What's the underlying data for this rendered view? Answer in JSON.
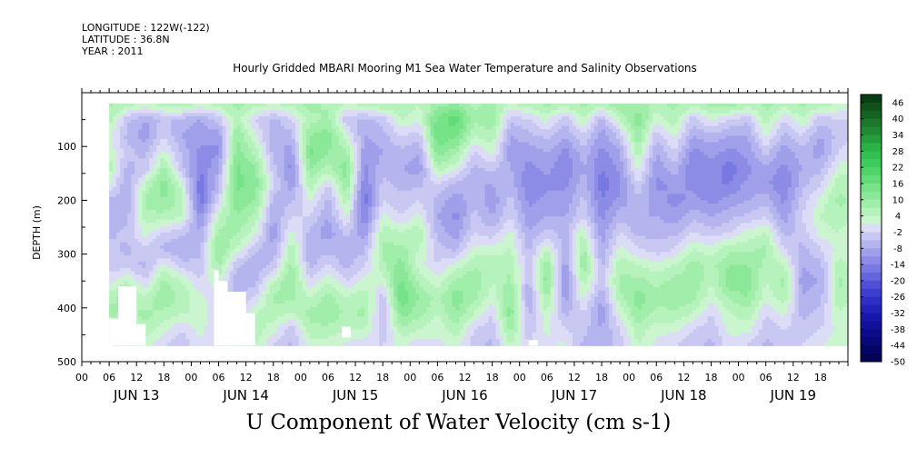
{
  "header": {
    "longitude": "LONGITUDE : 122W(-122)",
    "latitude": "LATITUDE : 36.8N",
    "year": "YEAR : 2011"
  },
  "chart_data": {
    "type": "heatmap",
    "title": "Hourly Gridded MBARI Mooring M1 Sea Water Temperature and Salinity Observations",
    "subtitle": "U Component of Water Velocity (cm s-1)",
    "ylabel": "DEPTH (m)",
    "xlabel": "",
    "ylim": [
      500,
      0
    ],
    "y_ticks": [
      100,
      200,
      300,
      400,
      500
    ],
    "x_hour_labels": [
      "00",
      "06",
      "12",
      "18",
      "00",
      "06",
      "12",
      "18",
      "00",
      "06",
      "12",
      "18",
      "00",
      "06",
      "12",
      "18",
      "00",
      "06",
      "12",
      "18",
      "00",
      "06",
      "12",
      "18",
      "00",
      "06",
      "12",
      "18"
    ],
    "x_day_labels": [
      "JUN 13",
      "JUN 14",
      "JUN 15",
      "JUN 16",
      "JUN 17",
      "JUN 18",
      "JUN 19"
    ],
    "x_range_hours": [
      0,
      168
    ],
    "colorbar": {
      "labels": [
        "46",
        "40",
        "34",
        "28",
        "22",
        "16",
        "10",
        "4",
        "-2",
        "-8",
        "-14",
        "-20",
        "-26",
        "-32",
        "-38",
        "-44",
        "-50"
      ],
      "bins": [
        {
          "from": 46,
          "to": 52,
          "color": "#0b3d14"
        },
        {
          "from": 43,
          "to": 46,
          "color": "#10501b"
        },
        {
          "from": 40,
          "to": 43,
          "color": "#156322"
        },
        {
          "from": 37,
          "to": 40,
          "color": "#1a772b"
        },
        {
          "from": 34,
          "to": 37,
          "color": "#1f8a33"
        },
        {
          "from": 31,
          "to": 34,
          "color": "#249e3c"
        },
        {
          "from": 28,
          "to": 31,
          "color": "#2ab246"
        },
        {
          "from": 25,
          "to": 28,
          "color": "#32c050"
        },
        {
          "from": 22,
          "to": 25,
          "color": "#3ecb5b"
        },
        {
          "from": 19,
          "to": 22,
          "color": "#50d469"
        },
        {
          "from": 16,
          "to": 19,
          "color": "#63dc78"
        },
        {
          "from": 13,
          "to": 16,
          "color": "#77e388"
        },
        {
          "from": 10,
          "to": 13,
          "color": "#8ce899"
        },
        {
          "from": 7,
          "to": 10,
          "color": "#a1edaa"
        },
        {
          "from": 4,
          "to": 7,
          "color": "#b6f2bc"
        },
        {
          "from": 1,
          "to": 4,
          "color": "#cbf5cf"
        },
        {
          "from": -2,
          "to": 1,
          "color": "#dcdcf7"
        },
        {
          "from": -5,
          "to": -2,
          "color": "#c8c8f2"
        },
        {
          "from": -8,
          "to": -5,
          "color": "#b4b4ee"
        },
        {
          "from": -11,
          "to": -8,
          "color": "#a0a0ea"
        },
        {
          "from": -14,
          "to": -11,
          "color": "#8c8ce6"
        },
        {
          "from": -17,
          "to": -14,
          "color": "#7878e2"
        },
        {
          "from": -20,
          "to": -17,
          "color": "#6464dc"
        },
        {
          "from": -23,
          "to": -20,
          "color": "#5050d6"
        },
        {
          "from": -26,
          "to": -23,
          "color": "#3e3ecf"
        },
        {
          "from": -29,
          "to": -26,
          "color": "#2e2ec6"
        },
        {
          "from": -32,
          "to": -29,
          "color": "#2222ba"
        },
        {
          "from": -35,
          "to": -32,
          "color": "#1818ac"
        },
        {
          "from": -38,
          "to": -35,
          "color": "#11119c"
        },
        {
          "from": -41,
          "to": -38,
          "color": "#0c0c8a"
        },
        {
          "from": -44,
          "to": -41,
          "color": "#080878"
        },
        {
          "from": -47,
          "to": -44,
          "color": "#050566"
        },
        {
          "from": -50,
          "to": -47,
          "color": "#030355"
        }
      ]
    },
    "field": {
      "hour_step": 4,
      "depth_step": 30,
      "depths": [
        20,
        50,
        80,
        110,
        140,
        170,
        200,
        230,
        260,
        290,
        320,
        350,
        380,
        410,
        440,
        470
      ],
      "hours_start": 6,
      "hours_end": 170,
      "columns": [
        {
          "h": 6,
          "u": [
            8,
            6,
            2,
            4,
            6,
            2,
            -6,
            -8,
            -6,
            -4,
            -4,
            0,
            6,
            8,
            4,
            -2
          ]
        },
        {
          "h": 10,
          "u": [
            6,
            -4,
            -6,
            -4,
            -6,
            -8,
            -8,
            -6,
            -4,
            -6,
            -4,
            4,
            8,
            6,
            4,
            2
          ]
        },
        {
          "h": 14,
          "u": [
            4,
            -8,
            -10,
            -6,
            -4,
            4,
            8,
            6,
            2,
            -2,
            -6,
            -2,
            4,
            8,
            6,
            2
          ]
        },
        {
          "h": 18,
          "u": [
            6,
            -4,
            -2,
            2,
            8,
            12,
            10,
            6,
            -2,
            -6,
            2,
            8,
            10,
            6,
            2,
            -2
          ]
        },
        {
          "h": 22,
          "u": [
            8,
            -6,
            -8,
            -6,
            -4,
            2,
            6,
            4,
            -4,
            -8,
            -4,
            4,
            6,
            4,
            -2,
            -4
          ]
        },
        {
          "h": 26,
          "u": [
            4,
            -8,
            -10,
            -12,
            -14,
            -16,
            -16,
            -12,
            -8,
            -6,
            -4,
            -2,
            2,
            4,
            2,
            0
          ]
        },
        {
          "h": 30,
          "u": [
            6,
            -4,
            -10,
            -12,
            -8,
            -6,
            -2,
            4,
            8,
            10,
            8,
            4,
            -2,
            -4,
            -2,
            0
          ]
        },
        {
          "h": 34,
          "u": [
            8,
            6,
            10,
            12,
            14,
            14,
            12,
            10,
            8,
            4,
            -4,
            -8,
            -6,
            -4,
            2,
            4
          ]
        },
        {
          "h": 38,
          "u": [
            6,
            -2,
            2,
            6,
            10,
            12,
            10,
            6,
            2,
            -4,
            -8,
            -6,
            -2,
            4,
            6,
            4
          ]
        },
        {
          "h": 42,
          "u": [
            4,
            -6,
            -8,
            -6,
            -4,
            -2,
            -6,
            -8,
            -10,
            -8,
            -4,
            4,
            8,
            6,
            2,
            -2
          ]
        },
        {
          "h": 46,
          "u": [
            6,
            -2,
            -6,
            -10,
            -12,
            -10,
            -6,
            -2,
            2,
            6,
            8,
            10,
            8,
            4,
            -4,
            -6
          ]
        },
        {
          "h": 50,
          "u": [
            8,
            6,
            10,
            14,
            10,
            6,
            2,
            -2,
            -6,
            -8,
            -6,
            -2,
            4,
            8,
            6,
            2
          ]
        },
        {
          "h": 54,
          "u": [
            6,
            8,
            12,
            10,
            6,
            -2,
            -6,
            -8,
            -10,
            -6,
            -2,
            4,
            8,
            10,
            6,
            2
          ]
        },
        {
          "h": 58,
          "u": [
            4,
            -4,
            2,
            8,
            12,
            10,
            6,
            2,
            -4,
            -8,
            -6,
            -2,
            4,
            6,
            4,
            0
          ]
        },
        {
          "h": 62,
          "u": [
            6,
            -6,
            -8,
            -10,
            -12,
            -14,
            -16,
            -14,
            -10,
            -6,
            -2,
            2,
            6,
            8,
            4,
            -2
          ]
        },
        {
          "h": 66,
          "u": [
            8,
            -4,
            -6,
            -8,
            -6,
            -4,
            -2,
            2,
            6,
            8,
            6,
            2,
            -4,
            -6,
            -4,
            -2
          ]
        },
        {
          "h": 70,
          "u": [
            6,
            4,
            -2,
            -6,
            -8,
            -6,
            -4,
            -2,
            4,
            8,
            12,
            14,
            16,
            12,
            6,
            2
          ]
        },
        {
          "h": 74,
          "u": [
            4,
            2,
            -4,
            -8,
            -10,
            -6,
            -2,
            2,
            6,
            4,
            2,
            6,
            10,
            8,
            4,
            -2
          ]
        },
        {
          "h": 78,
          "u": [
            8,
            14,
            16,
            12,
            6,
            -2,
            -6,
            -8,
            -6,
            -4,
            -2,
            2,
            6,
            4,
            2,
            0
          ]
        },
        {
          "h": 82,
          "u": [
            10,
            18,
            14,
            8,
            2,
            -6,
            -10,
            -12,
            -10,
            -6,
            2,
            8,
            12,
            10,
            6,
            2
          ]
        },
        {
          "h": 86,
          "u": [
            6,
            8,
            4,
            -2,
            -6,
            -8,
            -6,
            -4,
            -2,
            2,
            6,
            10,
            8,
            4,
            -2,
            -4
          ]
        },
        {
          "h": 90,
          "u": [
            8,
            10,
            6,
            2,
            -4,
            -8,
            -10,
            -8,
            -4,
            2,
            6,
            4,
            2,
            -2,
            -4,
            -6
          ]
        },
        {
          "h": 94,
          "u": [
            4,
            -4,
            -8,
            -10,
            -8,
            -6,
            -4,
            -2,
            2,
            4,
            6,
            8,
            10,
            12,
            8,
            4
          ]
        },
        {
          "h": 98,
          "u": [
            6,
            -2,
            -6,
            -10,
            -12,
            -14,
            -12,
            -10,
            -8,
            -6,
            -4,
            -6,
            -8,
            -6,
            -4,
            -2
          ]
        },
        {
          "h": 102,
          "u": [
            8,
            2,
            -4,
            -8,
            -10,
            -12,
            -10,
            -8,
            -4,
            4,
            10,
            12,
            8,
            4,
            2,
            0
          ]
        },
        {
          "h": 106,
          "u": [
            6,
            -4,
            -8,
            -12,
            -14,
            -12,
            -10,
            -8,
            -6,
            -8,
            -10,
            -12,
            -10,
            -6,
            -2,
            2
          ]
        },
        {
          "h": 110,
          "u": [
            8,
            4,
            -2,
            -6,
            -8,
            -6,
            -4,
            -2,
            4,
            8,
            10,
            6,
            2,
            -2,
            -4,
            -6
          ]
        },
        {
          "h": 114,
          "u": [
            6,
            -6,
            -10,
            -12,
            -14,
            -16,
            -14,
            -12,
            -10,
            -8,
            -6,
            -4,
            -8,
            -10,
            -8,
            -6
          ]
        },
        {
          "h": 118,
          "u": [
            10,
            4,
            -4,
            -8,
            -10,
            -12,
            -10,
            -6,
            -2,
            2,
            6,
            8,
            6,
            2,
            -2,
            -4
          ]
        },
        {
          "h": 122,
          "u": [
            8,
            12,
            10,
            6,
            2,
            -2,
            -6,
            -8,
            -6,
            -2,
            4,
            8,
            12,
            10,
            6,
            4
          ]
        },
        {
          "h": 126,
          "u": [
            6,
            2,
            -4,
            -8,
            -10,
            -12,
            -10,
            -8,
            -6,
            -4,
            2,
            6,
            8,
            6,
            2,
            0
          ]
        },
        {
          "h": 130,
          "u": [
            8,
            6,
            2,
            -2,
            -6,
            -10,
            -12,
            -10,
            -6,
            -2,
            4,
            8,
            10,
            6,
            2,
            -2
          ]
        },
        {
          "h": 134,
          "u": [
            6,
            -4,
            -8,
            -12,
            -14,
            -12,
            -10,
            -6,
            -2,
            4,
            8,
            10,
            8,
            4,
            -2,
            -4
          ]
        },
        {
          "h": 138,
          "u": [
            8,
            2,
            -6,
            -10,
            -12,
            -14,
            -12,
            -8,
            -4,
            2,
            6,
            4,
            2,
            -2,
            -4,
            -6
          ]
        },
        {
          "h": 142,
          "u": [
            10,
            -2,
            -8,
            -12,
            -16,
            -14,
            -10,
            -6,
            -2,
            6,
            10,
            12,
            8,
            4,
            2,
            0
          ]
        },
        {
          "h": 146,
          "u": [
            6,
            -4,
            -8,
            -10,
            -12,
            -10,
            -8,
            -4,
            2,
            6,
            10,
            12,
            10,
            6,
            2,
            -2
          ]
        },
        {
          "h": 150,
          "u": [
            8,
            6,
            2,
            -4,
            -8,
            -10,
            -6,
            -2,
            4,
            8,
            6,
            4,
            2,
            -2,
            -4,
            -6
          ]
        },
        {
          "h": 154,
          "u": [
            6,
            -2,
            -6,
            -10,
            -12,
            -14,
            -12,
            -10,
            -6,
            -2,
            4,
            8,
            6,
            2,
            -2,
            -4
          ]
        },
        {
          "h": 158,
          "u": [
            8,
            4,
            -2,
            -6,
            -8,
            -6,
            -4,
            -2,
            -4,
            -6,
            -8,
            -10,
            -8,
            -6,
            -4,
            -2
          ]
        },
        {
          "h": 162,
          "u": [
            6,
            -4,
            -8,
            -10,
            -6,
            -2,
            2,
            4,
            2,
            -2,
            -6,
            -8,
            -6,
            -4,
            -2,
            0
          ]
        },
        {
          "h": 166,
          "u": [
            4,
            -2,
            -4,
            -2,
            2,
            6,
            8,
            6,
            4,
            2,
            6,
            8,
            6,
            4,
            2,
            4
          ]
        },
        {
          "h": 170,
          "u": [
            2,
            -2,
            -2,
            0,
            4,
            6,
            6,
            4,
            2,
            0,
            2,
            4,
            4,
            2,
            0,
            2
          ]
        }
      ]
    }
  }
}
